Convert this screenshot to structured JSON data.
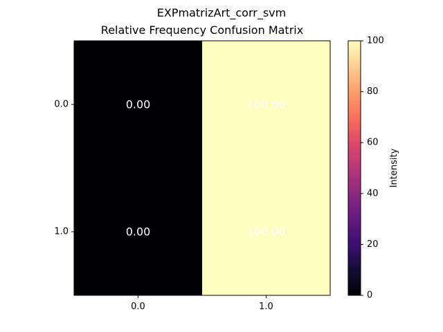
{
  "figure": {
    "suptitle": "EXPmatrizArt_corr_svm"
  },
  "chart_data": {
    "type": "heatmap",
    "title": "Relative Frequency Confusion Matrix",
    "xlabel": "",
    "ylabel": "",
    "x_categories": [
      "0.0",
      "1.0"
    ],
    "y_categories": [
      "0.0",
      "1.0"
    ],
    "values": [
      [
        0.0,
        100.0
      ],
      [
        0.0,
        100.0
      ]
    ],
    "cell_labels": [
      [
        "0.00",
        "100.00"
      ],
      [
        "0.00",
        "100.00"
      ]
    ],
    "colormap": "magma",
    "vmin": 0,
    "vmax": 100,
    "colorbar": {
      "label": "Intensity",
      "ticks": [
        0,
        20,
        40,
        60,
        80,
        100
      ],
      "tick_labels": [
        "0",
        "20",
        "40",
        "60",
        "80",
        "100"
      ]
    },
    "grid": false
  }
}
